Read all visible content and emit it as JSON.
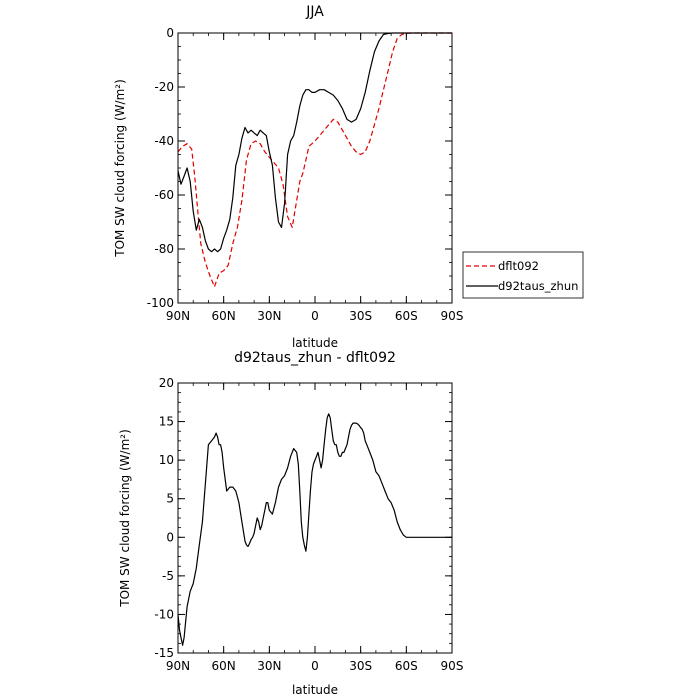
{
  "chart_data": [
    {
      "type": "line",
      "title": "JJA",
      "xlabel": "latitude",
      "ylabel": "TOM SW cloud forcing (W/m²)",
      "xlim": [
        90,
        -90
      ],
      "ylim": [
        -100,
        0
      ],
      "xticks": [
        90,
        60,
        30,
        0,
        -30,
        -60,
        -90
      ],
      "xtick_labels": [
        "90N",
        "60N",
        "30N",
        "0",
        "30S",
        "60S",
        "90S"
      ],
      "yticks": [
        -100,
        -80,
        -60,
        -40,
        -20,
        0
      ],
      "ytick_labels": [
        "-100",
        "-80",
        "-60",
        "-40",
        "-20",
        "0"
      ],
      "grid": false,
      "legend": "right",
      "series": [
        {
          "name": "dflt092",
          "color": "#e00000",
          "style": "dashed",
          "x": [
            90,
            87,
            84,
            81,
            79,
            77,
            75,
            72,
            69,
            66,
            63,
            60,
            57,
            54,
            51,
            48,
            45,
            42,
            39,
            36,
            33,
            30,
            27,
            24,
            21,
            18,
            15,
            12,
            10,
            8,
            6,
            4,
            2,
            0,
            -3,
            -6,
            -9,
            -12,
            -15,
            -18,
            -21,
            -24,
            -27,
            -30,
            -33,
            -36,
            -39,
            -42,
            -45,
            -48,
            -51,
            -54,
            -57,
            -60,
            -63,
            -66,
            -69,
            -72,
            -75,
            -78,
            -81,
            -84,
            -87,
            -90
          ],
          "y": [
            -44,
            -42,
            -41,
            -43,
            -53,
            -66,
            -78,
            -85,
            -90,
            -94,
            -89,
            -88,
            -86,
            -78,
            -72,
            -62,
            -47,
            -41,
            -40,
            -41,
            -44,
            -46,
            -48,
            -50,
            -56,
            -68,
            -72,
            -62,
            -55,
            -52,
            -47,
            -42,
            -41,
            -40,
            -38,
            -36,
            -34,
            -32,
            -33,
            -36,
            -39,
            -42,
            -44,
            -45,
            -44,
            -40,
            -34,
            -28,
            -21,
            -14,
            -7,
            -2,
            -0.5,
            -0.2,
            0,
            0,
            0,
            0,
            0,
            0,
            0,
            0,
            0,
            0
          ]
        },
        {
          "name": "d92taus_zhun",
          "color": "#000000",
          "style": "solid",
          "x": [
            90,
            88,
            86,
            84,
            82,
            80,
            78,
            76,
            74,
            72,
            70,
            68,
            66,
            64,
            62,
            60,
            58,
            56,
            54,
            52,
            50,
            48,
            46,
            44,
            42,
            40,
            38,
            36,
            34,
            32,
            30,
            28,
            26,
            24,
            22,
            20,
            18,
            16,
            14,
            12,
            10,
            8,
            6,
            4,
            2,
            0,
            -3,
            -6,
            -9,
            -12,
            -15,
            -18,
            -21,
            -24,
            -27,
            -30,
            -33,
            -36,
            -39,
            -42,
            -45,
            -48,
            -51,
            -54,
            -57,
            -60,
            -63,
            -66,
            -69,
            -72,
            -75,
            -78,
            -81,
            -84,
            -87,
            -90
          ],
          "y": [
            -51,
            -56,
            -53,
            -50,
            -55,
            -66,
            -73,
            -69,
            -72,
            -77,
            -80,
            -81,
            -80,
            -81,
            -80,
            -76,
            -73,
            -69,
            -61,
            -49,
            -45,
            -39,
            -35,
            -37,
            -36,
            -37,
            -38,
            -36,
            -37,
            -38,
            -44,
            -49,
            -61,
            -70,
            -72,
            -63,
            -45,
            -40,
            -38,
            -33,
            -27,
            -23,
            -21,
            -21,
            -22,
            -22,
            -21,
            -21,
            -22,
            -23,
            -25,
            -28,
            -32,
            -33,
            -32,
            -28,
            -22,
            -14,
            -7,
            -3,
            -0.5,
            -0.2,
            0,
            0,
            0,
            0,
            0,
            0,
            0,
            0,
            0,
            0,
            0,
            0,
            0,
            0
          ]
        }
      ]
    },
    {
      "type": "line",
      "title": "d92taus_zhun - dflt092",
      "xlabel": "latitude",
      "ylabel": "TOM SW cloud forcing (W/m²)",
      "xlim": [
        90,
        -90
      ],
      "ylim": [
        -15,
        20
      ],
      "xticks": [
        90,
        60,
        30,
        0,
        -30,
        -60,
        -90
      ],
      "xtick_labels": [
        "90N",
        "60N",
        "30N",
        "0",
        "30S",
        "60S",
        "90S"
      ],
      "yticks": [
        -15,
        -10,
        -5,
        0,
        5,
        10,
        15,
        20
      ],
      "ytick_labels": [
        "-15",
        "-10",
        "-5",
        "0",
        "5",
        "10",
        "15",
        "20"
      ],
      "grid": false,
      "series": [
        {
          "color": "#000000",
          "style": "solid",
          "x": [
            90,
            89,
            88,
            87,
            86,
            85,
            84,
            82,
            80,
            78,
            76,
            74,
            72,
            70,
            68,
            66,
            65,
            64,
            63,
            62,
            61,
            60,
            58,
            56,
            54,
            52,
            50,
            48,
            46,
            45,
            44,
            43,
            42,
            41,
            40,
            39,
            38,
            37,
            36,
            35,
            34,
            33,
            32,
            31,
            30,
            28,
            26,
            24,
            22,
            20,
            18,
            16,
            14,
            12,
            11,
            10,
            9,
            8,
            7,
            6,
            5,
            4,
            3,
            2,
            1,
            0,
            -1,
            -2,
            -3,
            -4,
            -5,
            -6,
            -7,
            -8,
            -9,
            -10,
            -11,
            -12,
            -13,
            -14,
            -15,
            -16,
            -17,
            -18,
            -19,
            -20,
            -21,
            -22,
            -23,
            -24,
            -25,
            -26,
            -27,
            -28,
            -29,
            -30,
            -31,
            -32,
            -33,
            -34,
            -36,
            -38,
            -40,
            -42,
            -44,
            -46,
            -48,
            -50,
            -52,
            -54,
            -56,
            -58,
            -60,
            -62,
            -64,
            -66,
            -70,
            -75,
            -80,
            -85,
            -90
          ],
          "y": [
            -10,
            -12,
            -13,
            -14,
            -13,
            -11,
            -9,
            -7,
            -6,
            -4,
            -1,
            2,
            7,
            12,
            12.5,
            13,
            13.5,
            13,
            12,
            12,
            11,
            9,
            6,
            6.5,
            6.5,
            6,
            4.5,
            2,
            -0.5,
            -1,
            -1.2,
            -0.8,
            -0.3,
            0,
            0.5,
            1.5,
            2.5,
            2,
            1,
            1.5,
            2.5,
            3.5,
            4.5,
            4.5,
            3.5,
            3,
            4.5,
            6.5,
            7.5,
            8,
            9,
            10.5,
            11.5,
            11,
            9.5,
            6,
            2,
            0,
            -1,
            -1.8,
            0,
            3,
            6,
            8.5,
            9.5,
            10,
            10.5,
            11,
            10,
            9,
            10,
            12,
            14,
            15.5,
            16,
            15.5,
            14,
            12.5,
            12,
            12,
            11,
            10.5,
            10.5,
            11,
            11,
            11.5,
            12,
            13,
            14,
            14.5,
            14.8,
            14.8,
            14.8,
            14.7,
            14.5,
            14.2,
            14,
            13.5,
            12.5,
            12,
            11,
            10,
            8.5,
            8,
            7,
            6,
            5,
            4.5,
            3.5,
            2,
            1,
            0.3,
            0,
            0,
            0,
            0,
            0,
            0,
            0,
            0,
            0
          ]
        }
      ]
    }
  ]
}
